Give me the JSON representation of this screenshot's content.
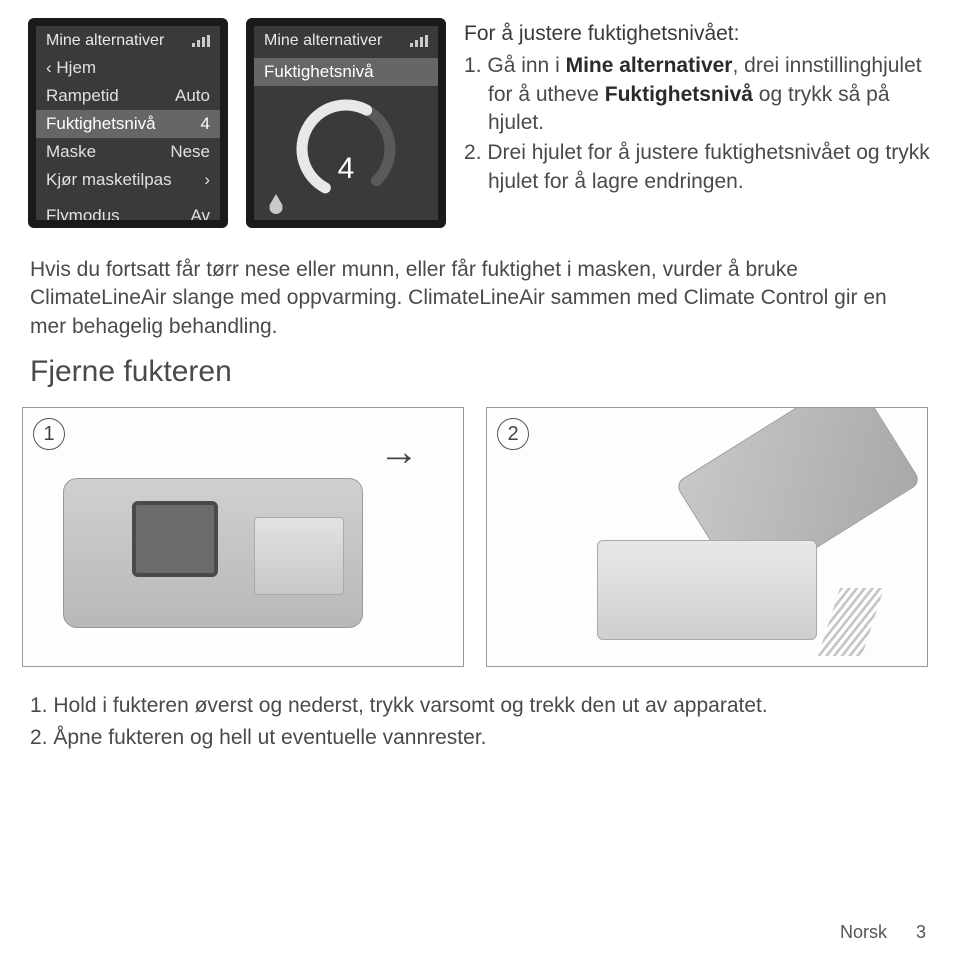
{
  "screen1": {
    "title": "Mine alternativer",
    "rows": [
      {
        "left": "‹ Hjem",
        "right": ""
      },
      {
        "left": "Rampetid",
        "right": "Auto"
      },
      {
        "left": "Fuktighetsnivå",
        "right": "4",
        "highlight": true
      },
      {
        "left": "Maske",
        "right": "Nese"
      },
      {
        "left": "Kjør masketilpas",
        "right": "›"
      },
      {
        "left": "",
        "right": ""
      },
      {
        "left": "Flymodus",
        "right": "Av"
      }
    ]
  },
  "screen2": {
    "title": "Mine alternativer",
    "label": "Fuktighetsnivå",
    "value": "4",
    "dial": {
      "size": 110,
      "stroke_bg": "#5a5a5a",
      "stroke_fg": "#e8e8e8",
      "stroke_width": 11,
      "radius": 44,
      "bg_dash": "221 55",
      "fg_dash": "138 276",
      "rotate_deg": 118
    }
  },
  "instructions": {
    "title": "For å justere fuktighetsnivået:",
    "step1_pre": "Gå inn i ",
    "step1_bold1": "Mine alternativer",
    "step1_mid": ", drei innstillinghjulet for å utheve ",
    "step1_bold2": "Fuktighetsnivå",
    "step1_post": " og trykk så på hjulet.",
    "step2": "Drei hjulet for å justere fuktighetsnivået og trykk hjulet for å lagre endringen."
  },
  "mid_text": "Hvis du fortsatt får tørr nese eller munn, eller får fuktighet i masken, vurder å bruke ClimateLineAir slange med oppvarming. ClimateLineAir sammen med Climate Control gir en mer behagelig behandling.",
  "section_title": "Fjerne fukteren",
  "figures": {
    "num1": "1",
    "num2": "2",
    "arrow": "→"
  },
  "bottom_steps": {
    "s1": "Hold i fukteren øverst og nederst, trykk varsomt og trekk den ut av apparatet.",
    "s2": "Åpne fukteren og hell ut eventuelle vannrester."
  },
  "footer": {
    "lang": "Norsk",
    "page": "3"
  },
  "colors": {
    "screen_bg": "#3a3a3a",
    "screen_border": "#1a1a1a",
    "highlight_bg": "#666666",
    "text": "#4a4a4a",
    "figure_border": "#999999"
  }
}
